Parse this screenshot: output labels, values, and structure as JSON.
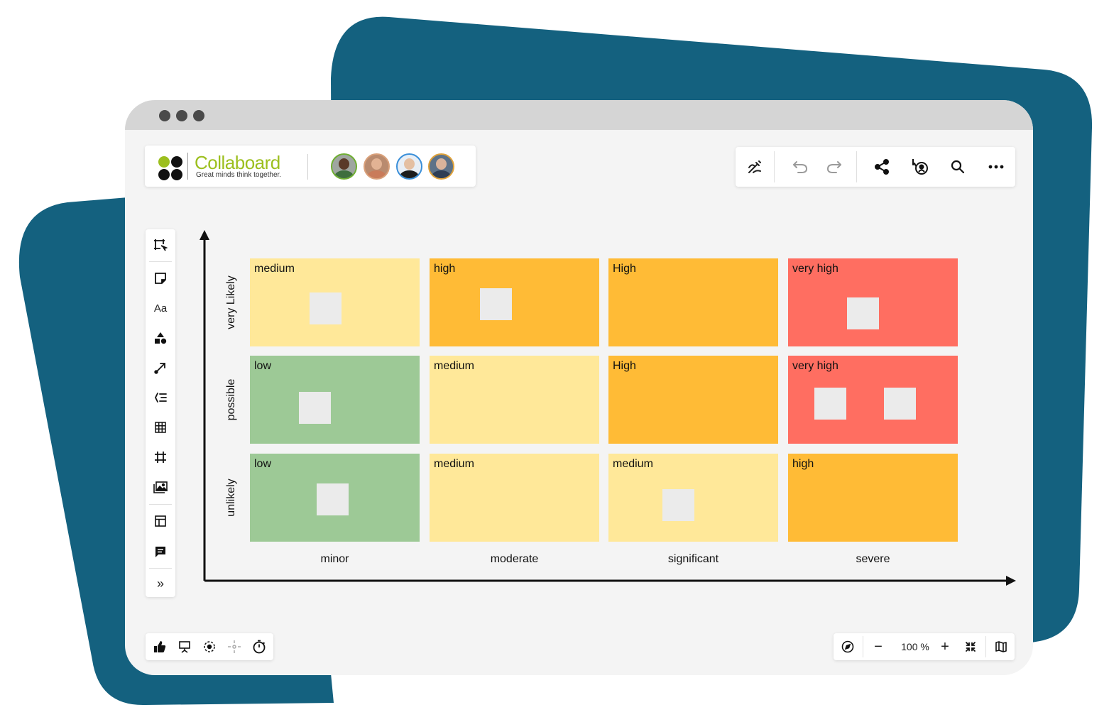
{
  "colors": {
    "brand_blue": "#14617f",
    "brand_green": "#9cbf1e",
    "risk_low": "#9dc996",
    "risk_medium": "#ffe899",
    "risk_high": "#ffbb36",
    "risk_very_high": "#ff6e61",
    "sticky_note": "#ebebeb"
  },
  "header": {
    "brand_name": "Collaboard",
    "tagline": "Great minds think together.",
    "logo_icon": "collaboard-logo-icon",
    "avatars": [
      {
        "name": "avatar-1",
        "ring": "#6fae33",
        "bg": "#9fa6a0",
        "skin": "#5a3a28",
        "shirt": "#3e6e3e"
      },
      {
        "name": "avatar-2",
        "ring": "#d9a07a",
        "bg": "#b98b6f",
        "skin": "#e2b394",
        "shirt": "#c97b5a"
      },
      {
        "name": "avatar-3",
        "ring": "#3a8fd9",
        "bg": "#e8eef5",
        "skin": "#e4bfa2",
        "shirt": "#1d1d1d"
      },
      {
        "name": "avatar-4",
        "ring": "#e0a23a",
        "bg": "#5d7288",
        "skin": "#d9b39b",
        "shirt": "#2e3e55"
      }
    ]
  },
  "top_toolbar": {
    "icons": [
      "magic-pen-icon",
      "undo-icon",
      "redo-icon",
      "share-icon",
      "follow-me-icon",
      "search-icon",
      "more-icon"
    ]
  },
  "left_toolbar": {
    "select_icon": "select-frame-icon",
    "text_label": "Aa",
    "icons": [
      "sticky-note-icon",
      "text-icon",
      "shapes-icon",
      "connector-icon",
      "mindmap-icon",
      "table-icon",
      "frame-icon",
      "media-icon",
      "templates-icon",
      "comment-icon"
    ],
    "expand_label": "»"
  },
  "bottom_left_toolbar": {
    "icons": [
      "voting-icon",
      "presentation-icon",
      "focus-icon",
      "attention-icon",
      "timer-icon"
    ]
  },
  "bottom_right_toolbar": {
    "zoom_level": "100 %",
    "zoom_out_label": "−",
    "zoom_in_label": "+",
    "icons": [
      "navigator-icon",
      "fit-screen-icon",
      "map-icon"
    ]
  },
  "matrix": {
    "rows": [
      "very Likely",
      "possible",
      "unlikely"
    ],
    "columns": [
      "minor",
      "moderate",
      "significant",
      "severe"
    ],
    "cells": [
      [
        {
          "label": "medium",
          "level": "medium",
          "notes": 1
        },
        {
          "label": "high",
          "level": "high",
          "notes": 1
        },
        {
          "label": "High",
          "level": "high",
          "notes": 0
        },
        {
          "label": "very high",
          "level": "very_high",
          "notes": 1
        }
      ],
      [
        {
          "label": "low",
          "level": "low",
          "notes": 1
        },
        {
          "label": "medium",
          "level": "medium",
          "notes": 0
        },
        {
          "label": "High",
          "level": "high",
          "notes": 0
        },
        {
          "label": "very high",
          "level": "very_high",
          "notes": 2
        }
      ],
      [
        {
          "label": "low",
          "level": "low",
          "notes": 1
        },
        {
          "label": "medium",
          "level": "medium",
          "notes": 0
        },
        {
          "label": "medium",
          "level": "medium",
          "notes": 1
        },
        {
          "label": "high",
          "level": "high",
          "notes": 0
        }
      ]
    ]
  }
}
